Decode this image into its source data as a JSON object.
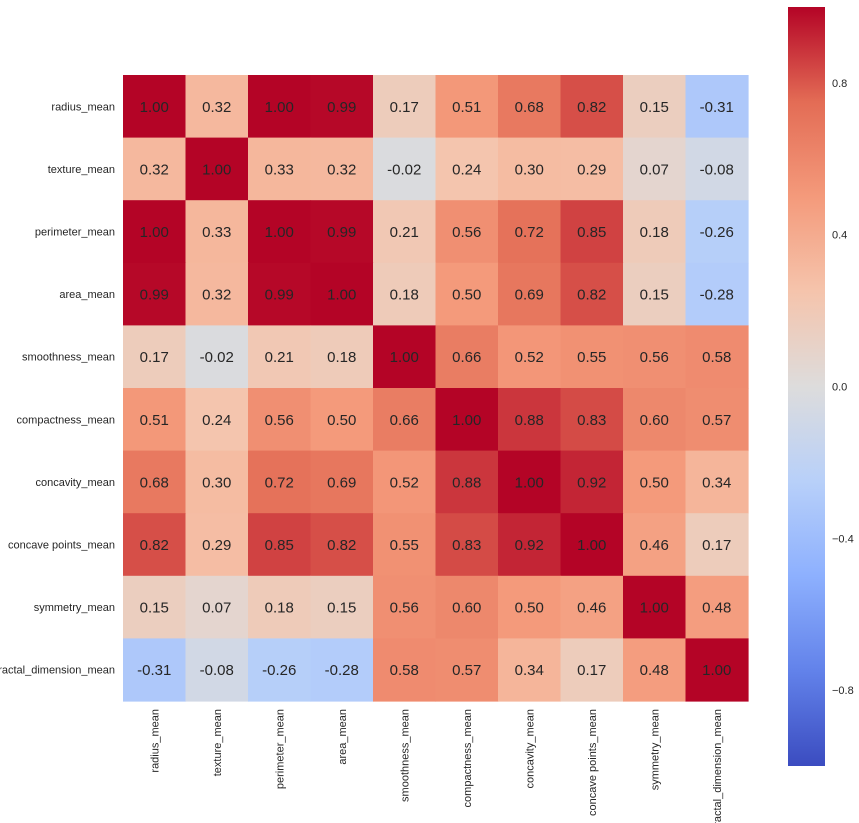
{
  "chart_data": {
    "type": "heatmap",
    "title": "",
    "xlabel": "",
    "ylabel": "",
    "labels": [
      "radius_mean",
      "texture_mean",
      "perimeter_mean",
      "area_mean",
      "smoothness_mean",
      "compactness_mean",
      "concavity_mean",
      "concave points_mean",
      "symmetry_mean",
      "fractal_dimension_mean"
    ],
    "matrix": [
      [
        1.0,
        0.32,
        1.0,
        0.99,
        0.17,
        0.51,
        0.68,
        0.82,
        0.15,
        -0.31
      ],
      [
        0.32,
        1.0,
        0.33,
        0.32,
        -0.02,
        0.24,
        0.3,
        0.29,
        0.07,
        -0.08
      ],
      [
        1.0,
        0.33,
        1.0,
        0.99,
        0.21,
        0.56,
        0.72,
        0.85,
        0.18,
        -0.26
      ],
      [
        0.99,
        0.32,
        0.99,
        1.0,
        0.18,
        0.5,
        0.69,
        0.82,
        0.15,
        -0.28
      ],
      [
        0.17,
        -0.02,
        0.21,
        0.18,
        1.0,
        0.66,
        0.52,
        0.55,
        0.56,
        0.58
      ],
      [
        0.51,
        0.24,
        0.56,
        0.5,
        0.66,
        1.0,
        0.88,
        0.83,
        0.6,
        0.57
      ],
      [
        0.68,
        0.3,
        0.72,
        0.69,
        0.52,
        0.88,
        1.0,
        0.92,
        0.5,
        0.34
      ],
      [
        0.82,
        0.29,
        0.85,
        0.82,
        0.55,
        0.83,
        0.92,
        1.0,
        0.46,
        0.17
      ],
      [
        0.15,
        0.07,
        0.18,
        0.15,
        0.56,
        0.6,
        0.5,
        0.46,
        1.0,
        0.48
      ],
      [
        -0.31,
        -0.08,
        -0.26,
        -0.28,
        0.58,
        0.57,
        0.34,
        0.17,
        0.48,
        1.0
      ]
    ],
    "value_format": "0.00",
    "colormap": "coolwarm",
    "vmin": -1.0,
    "vmax": 1.0,
    "colorbar": {
      "ticks": [
        0.8,
        0.4,
        0.0,
        -0.4,
        -0.8
      ],
      "tick_labels": [
        "0.8",
        "0.4",
        "0.0",
        "−0.4",
        "−0.8"
      ]
    }
  }
}
